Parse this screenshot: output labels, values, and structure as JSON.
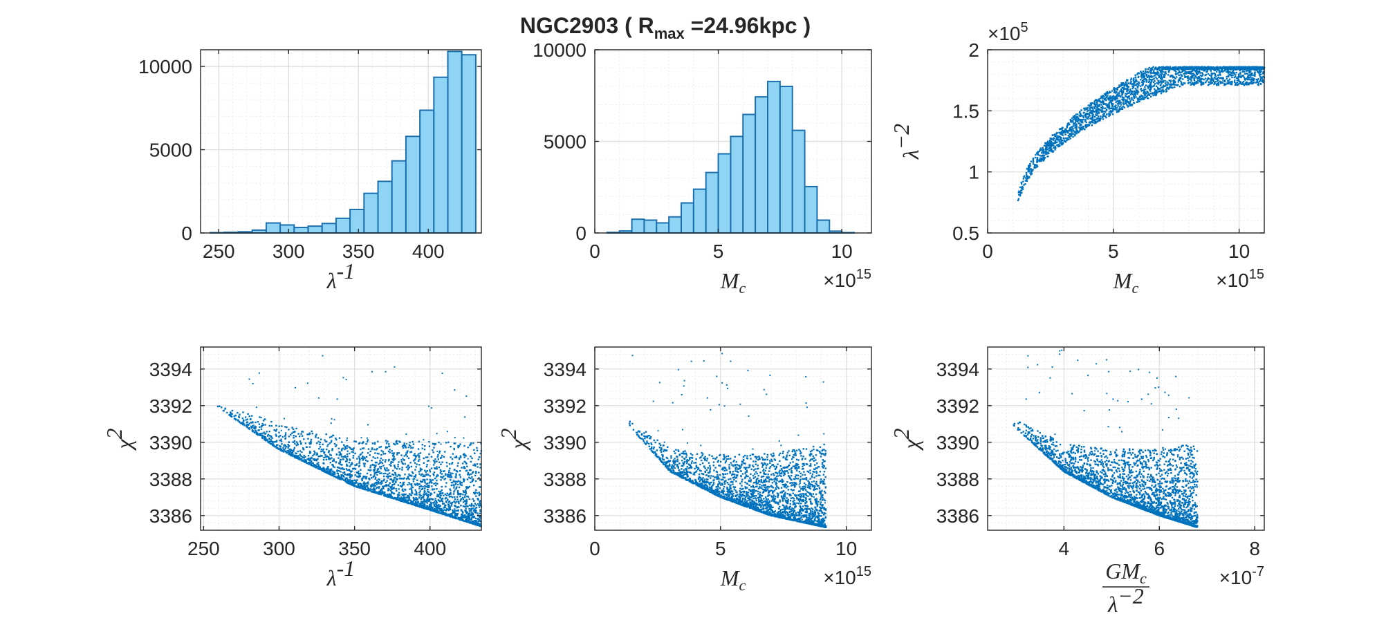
{
  "title": {
    "prefix": "NGC2903 ( ",
    "r_main": "R",
    "r_sub": "max",
    "suffix": " =24.96kpc )"
  },
  "colors": {
    "bar_fill": "#8fd4f4",
    "bar_edge": "#1c6fae",
    "scatter": "#0072bd"
  },
  "chart_data": [
    {
      "id": "hist-lambda-inv",
      "type": "bar",
      "xlabel": "λ",
      "xlabel_sup": "-1",
      "ylabel": "",
      "xlim": [
        237,
        438
      ],
      "ylim": [
        0,
        11000
      ],
      "xticks": [
        250,
        300,
        350,
        400
      ],
      "xticklabels": [
        "250",
        "300",
        "350",
        "400"
      ],
      "yticks": [
        0,
        5000,
        10000
      ],
      "yticklabels": [
        "0",
        "5000",
        "10000"
      ],
      "bin_edges": [
        244,
        254,
        264,
        274,
        284,
        294,
        304,
        314,
        324,
        334,
        344,
        354,
        364,
        374,
        384,
        394,
        404,
        414,
        424,
        434
      ],
      "counts": [
        20,
        40,
        70,
        170,
        600,
        480,
        330,
        410,
        570,
        880,
        1410,
        2380,
        3100,
        4330,
        5800,
        7370,
        9350,
        10900,
        10700
      ]
    },
    {
      "id": "hist-mc",
      "type": "bar",
      "xlabel": "M",
      "xlabel_sub": "c",
      "ylabel": "",
      "exponent": "×10",
      "exponent_sup": "15",
      "xlim": [
        0,
        11.2
      ],
      "ylim": [
        0,
        10000
      ],
      "xticks": [
        0,
        5,
        10
      ],
      "xticklabels": [
        "0",
        "5",
        "10"
      ],
      "yticks": [
        0,
        5000,
        10000
      ],
      "yticklabels": [
        "0",
        "5000",
        "10000"
      ],
      "bin_edges": [
        0.5,
        1.0,
        1.5,
        2.0,
        2.5,
        3.0,
        3.5,
        4.0,
        4.5,
        5.0,
        5.5,
        6.0,
        6.5,
        7.0,
        7.5,
        8.0,
        8.5,
        9.0,
        9.5,
        10.0,
        10.5
      ],
      "counts": [
        30,
        110,
        750,
        700,
        550,
        880,
        1640,
        2390,
        3300,
        4320,
        5270,
        6470,
        7430,
        8270,
        8000,
        5600,
        2530,
        700,
        100,
        20
      ]
    },
    {
      "id": "scatter-lambda2-mc",
      "type": "scatter",
      "xlabel": "M",
      "xlabel_sub": "c",
      "ylabel": "λ",
      "ylabel_sup": "−2",
      "exponent": "×10",
      "exponent_sup": "15",
      "yexponent": "×10",
      "yexponent_sup": "5",
      "xlim": [
        0,
        11
      ],
      "ylim": [
        0.5,
        2
      ],
      "xticks": [
        0,
        5,
        10
      ],
      "xticklabels": [
        "0",
        "5",
        "10"
      ],
      "yticks": [
        0.5,
        1,
        1.5,
        2
      ],
      "yticklabels": [
        "0.5",
        "1",
        "1.5",
        "2"
      ],
      "band": {
        "x_start": 1.2,
        "x_end": 11,
        "y_at_start": [
          0.7,
          0.77
        ],
        "ceiling": 1.86,
        "x_ceiling": 7.8
      },
      "density": "dense band rising from (1.2, 0.72) to the 1.86 ceiling near x = 7.8"
    },
    {
      "id": "scatter-chi2-lambda-inv",
      "type": "scatter",
      "xlabel": "λ",
      "xlabel_sup": "-1",
      "ylabel": "χ",
      "ylabel_sup": "2",
      "xlim": [
        248,
        434
      ],
      "ylim": [
        3385.2,
        3395.2
      ],
      "xticks": [
        250,
        300,
        350,
        400
      ],
      "xticklabels": [
        "250",
        "300",
        "350",
        "400"
      ],
      "yticks": [
        3386,
        3388,
        3390,
        3392,
        3394
      ],
      "yticklabels": [
        "3386",
        "3388",
        "3390",
        "3392",
        "3394"
      ],
      "lower_envelope": [
        [
          258,
          3392.0
        ],
        [
          300,
          3389.6
        ],
        [
          350,
          3387.6
        ],
        [
          400,
          3386.3
        ],
        [
          434,
          3385.4
        ]
      ]
    },
    {
      "id": "scatter-chi2-mc",
      "type": "scatter",
      "xlabel": "M",
      "xlabel_sub": "c",
      "ylabel": "χ",
      "ylabel_sup": "2",
      "exponent": "×10",
      "exponent_sup": "15",
      "xlim": [
        0,
        11
      ],
      "ylim": [
        3385.2,
        3395.2
      ],
      "xticks": [
        0,
        5,
        10
      ],
      "xticklabels": [
        "0",
        "5",
        "10"
      ],
      "yticks": [
        3386,
        3388,
        3390,
        3392,
        3394
      ],
      "yticklabels": [
        "3386",
        "3388",
        "3390",
        "3392",
        "3394"
      ],
      "lower_envelope": [
        [
          1.3,
          3391.0
        ],
        [
          3,
          3388.4
        ],
        [
          5,
          3387.0
        ],
        [
          7,
          3386.0
        ],
        [
          9.2,
          3385.35
        ]
      ]
    },
    {
      "id": "scatter-chi2-gmc",
      "type": "scatter",
      "xlabel": "GM",
      "xlabel_sub": "c",
      "xlabel_den": "λ",
      "xlabel_den_sup": "−2",
      "ylabel": "χ",
      "ylabel_sup": "2",
      "exponent": "×10",
      "exponent_sup": "-7",
      "xlim": [
        2.4,
        8.2
      ],
      "ylim": [
        3385.2,
        3395.2
      ],
      "xticks": [
        4,
        6,
        8
      ],
      "xticklabels": [
        "4",
        "6",
        "8"
      ],
      "yticks": [
        3386,
        3388,
        3390,
        3392,
        3394
      ],
      "yticklabels": [
        "3386",
        "3388",
        "3390",
        "3392",
        "3394"
      ],
      "lower_envelope": [
        [
          2.9,
          3391.0
        ],
        [
          4,
          3388.4
        ],
        [
          5,
          3387.0
        ],
        [
          6,
          3386.0
        ],
        [
          6.8,
          3385.35
        ]
      ]
    }
  ]
}
